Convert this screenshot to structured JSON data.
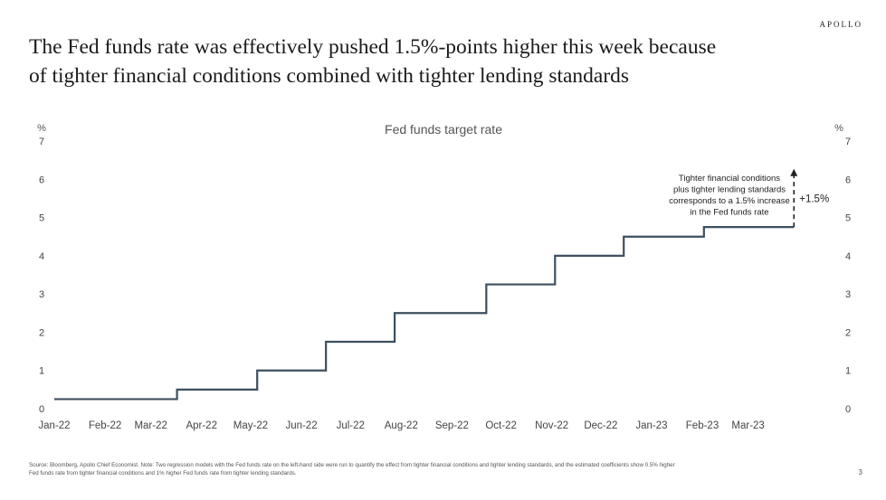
{
  "brand": "APOLLO",
  "headline_line1": "The Fed funds rate was effectively pushed 1.5%-points higher this week because",
  "headline_line2": "of tighter financial conditions combined with tighter lending standards",
  "page_number": "3",
  "source_line1": "Source: Bloomberg, Apollo Chief Economist. Note: Two regression models with the Fed funds rate on the left-hand side were run to quantify the effect from tighter financial conditions and tighter lending standards, and the estimated coefficients show 0.5% higher",
  "source_line2": "Fed funds rate from tighter financial conditions and 1% higher Fed funds rate from tighter lending standards.",
  "colors": {
    "line": "#3d4f5f",
    "text": "#444444",
    "annotation_arrow": "#222222"
  },
  "chart_data": {
    "type": "line",
    "title": "Fed funds target rate",
    "ylabel_left": "%",
    "ylabel_right": "%",
    "ylim": [
      0,
      7
    ],
    "yticks": [
      0,
      1,
      2,
      3,
      4,
      5,
      6,
      7
    ],
    "xlim": [
      "2022-01-01",
      "2023-04-15"
    ],
    "xticks": [
      {
        "date": "2022-01-01",
        "label": "Jan-22"
      },
      {
        "date": "2022-02-01",
        "label": "Feb-22"
      },
      {
        "date": "2022-03-01",
        "label": "Mar-22"
      },
      {
        "date": "2022-04-01",
        "label": "Apr-22"
      },
      {
        "date": "2022-05-01",
        "label": "May-22"
      },
      {
        "date": "2022-06-01",
        "label": "Jun-22"
      },
      {
        "date": "2022-07-01",
        "label": "Jul-22"
      },
      {
        "date": "2022-08-01",
        "label": "Aug-22"
      },
      {
        "date": "2022-09-01",
        "label": "Sep-22"
      },
      {
        "date": "2022-10-01",
        "label": "Oct-22"
      },
      {
        "date": "2022-11-01",
        "label": "Nov-22"
      },
      {
        "date": "2022-12-01",
        "label": "Dec-22"
      },
      {
        "date": "2023-01-01",
        "label": "Jan-23"
      },
      {
        "date": "2023-02-01",
        "label": "Feb-23"
      },
      {
        "date": "2023-03-01",
        "label": "Mar-23"
      }
    ],
    "grid": false,
    "series": [
      {
        "steps": [
          {
            "date": "2022-01-01",
            "value": 0.25
          },
          {
            "date": "2022-03-17",
            "value": 0.5
          },
          {
            "date": "2022-05-05",
            "value": 1.0
          },
          {
            "date": "2022-06-16",
            "value": 1.75
          },
          {
            "date": "2022-07-28",
            "value": 2.5
          },
          {
            "date": "2022-09-22",
            "value": 3.25
          },
          {
            "date": "2022-11-03",
            "value": 4.0
          },
          {
            "date": "2022-12-15",
            "value": 4.5
          },
          {
            "date": "2023-02-02",
            "value": 4.75
          },
          {
            "date": "2023-03-29",
            "value": 4.75
          }
        ]
      }
    ],
    "annotation": {
      "text_lines": [
        "Tighter financial conditions",
        "plus tighter lending standards",
        "corresponds to a 1.5% increase",
        "in the Fed funds rate"
      ],
      "arrow_from": 4.75,
      "arrow_to": 6.25,
      "arrow_date": "2023-03-29",
      "label": "+1.5%"
    }
  }
}
